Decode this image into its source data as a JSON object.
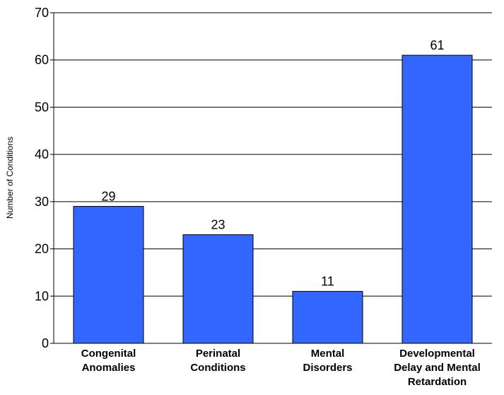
{
  "chart_data": {
    "type": "bar",
    "categories": [
      [
        "Congenital",
        "Anomalies"
      ],
      [
        "Perinatal",
        "Conditions"
      ],
      [
        "Mental",
        "Disorders"
      ],
      [
        "Developmental",
        "Delay and Mental",
        "Retardation"
      ]
    ],
    "values": [
      29,
      23,
      11,
      61
    ],
    "data_labels": [
      "29",
      "23",
      "11",
      "61"
    ],
    "title": "",
    "xlabel": "",
    "ylabel": "Number of Conditions",
    "ylim": [
      0,
      70
    ],
    "yticks": [
      0,
      10,
      20,
      30,
      40,
      50,
      60,
      70
    ],
    "grid": "horizontal",
    "legend": "none",
    "bar_color": "#3366ff",
    "bar_border_color": "#000000"
  }
}
